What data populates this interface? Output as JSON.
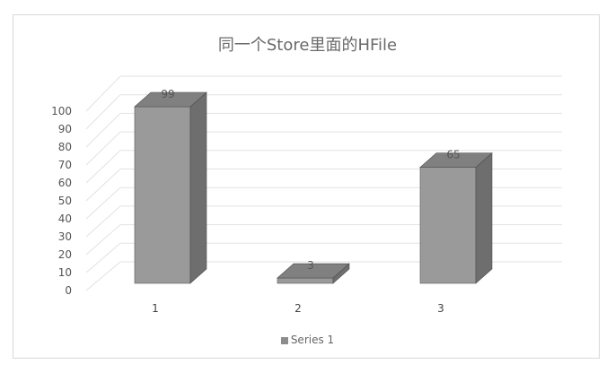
{
  "chart_data": {
    "type": "bar",
    "title": "同一个Store里面的HFile",
    "categories": [
      "1",
      "2",
      "3"
    ],
    "series": [
      {
        "name": "Series 1",
        "values": [
          99,
          3,
          65
        ]
      }
    ],
    "data_labels": [
      "99",
      "3",
      "65"
    ],
    "ylim": [
      0,
      100
    ],
    "yticks": [
      "0",
      "10",
      "20",
      "30",
      "40",
      "50",
      "60",
      "70",
      "80",
      "90",
      "100"
    ],
    "grid": true,
    "legend": "bottom",
    "style": "3d-column",
    "colors": {
      "front": "#9a9a9a",
      "side": "#6e6e6e",
      "top": "#808080",
      "grid": "#e2e2e2"
    }
  }
}
